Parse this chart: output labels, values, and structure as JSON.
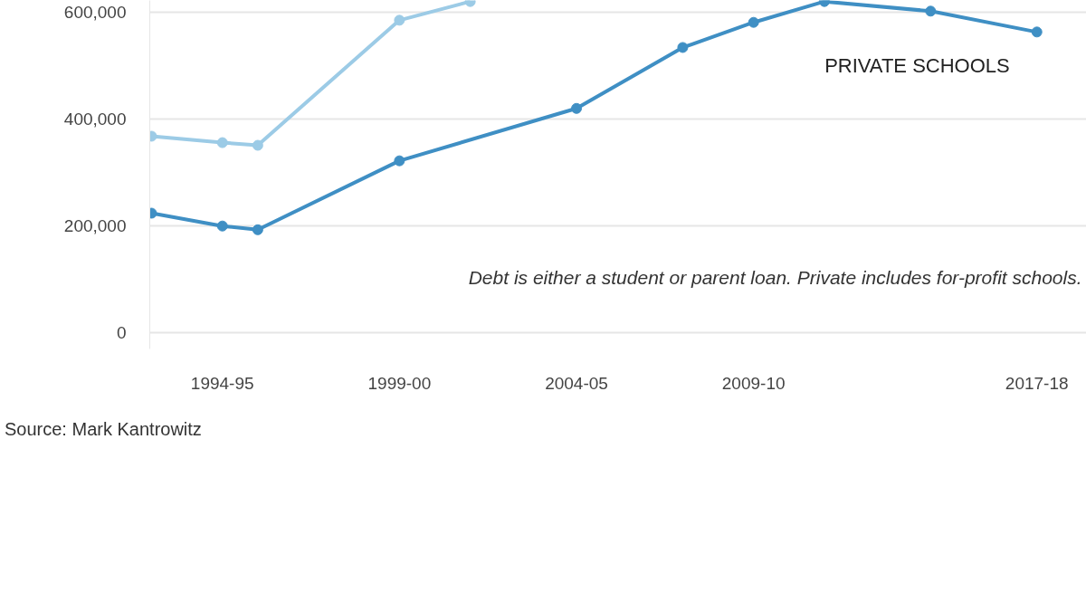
{
  "chart_data": {
    "type": "line",
    "categories": [
      null,
      null,
      "1994-95",
      null,
      null,
      null,
      null,
      "1999-00",
      null,
      null,
      null,
      null,
      "2004-05",
      null,
      null,
      null,
      null,
      "2009-10",
      null,
      null,
      null,
      null,
      null,
      null,
      null,
      "2017-18"
    ],
    "ylim": [
      -30000,
      622000
    ],
    "yticks": [
      {
        "value": 0,
        "label": "0"
      },
      {
        "value": 200000,
        "label": "200,000"
      },
      {
        "value": 400000,
        "label": "400,000"
      },
      {
        "value": 600000,
        "label": "600,000"
      }
    ],
    "grid": "y",
    "marker": "circle",
    "line_style": "solid",
    "series": [
      {
        "color": "#9ccbe6",
        "values": [
          368000,
          null,
          356000,
          351000,
          null,
          null,
          null,
          585000,
          null,
          620000,
          null,
          null,
          null,
          null,
          null,
          null,
          null,
          null,
          null,
          null,
          null,
          null,
          null,
          null,
          null,
          null
        ]
      },
      {
        "name": "PRIVATE SCHOOLS",
        "color": "#3f8fc4",
        "values": [
          224000,
          null,
          200000,
          193000,
          null,
          null,
          null,
          322000,
          null,
          null,
          null,
          null,
          420000,
          null,
          null,
          534000,
          null,
          581000,
          null,
          620000,
          null,
          null,
          602000,
          null,
          null,
          563000
        ]
      }
    ],
    "annotations": [
      "Debt is either a student or parent loan. Private includes for-profit schools.",
      "Source: Mark Kantrowitz"
    ]
  }
}
